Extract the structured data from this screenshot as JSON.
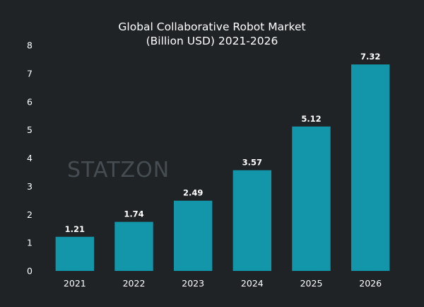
{
  "colors": {
    "background": "#1f2326",
    "bar": "#1496aa",
    "text": "#ffffff",
    "watermark": "#464d52"
  },
  "watermark": {
    "text": "STATZON"
  },
  "chart_data": {
    "type": "bar",
    "title": "Global Collaborative Robot Market",
    "subtitle": "(Billion USD) 2021-2026",
    "categories": [
      "2021",
      "2022",
      "2023",
      "2024",
      "2025",
      "2026"
    ],
    "values": [
      1.21,
      1.74,
      2.49,
      3.57,
      5.12,
      7.32
    ],
    "value_labels": [
      "1.21",
      "1.74",
      "2.49",
      "3.57",
      "5.12",
      "7.32"
    ],
    "ylim": [
      0,
      8
    ],
    "yticks": [
      0,
      1,
      2,
      3,
      4,
      5,
      6,
      7,
      8
    ],
    "xlabel": "",
    "ylabel": "",
    "grid": false,
    "legend": "none"
  }
}
